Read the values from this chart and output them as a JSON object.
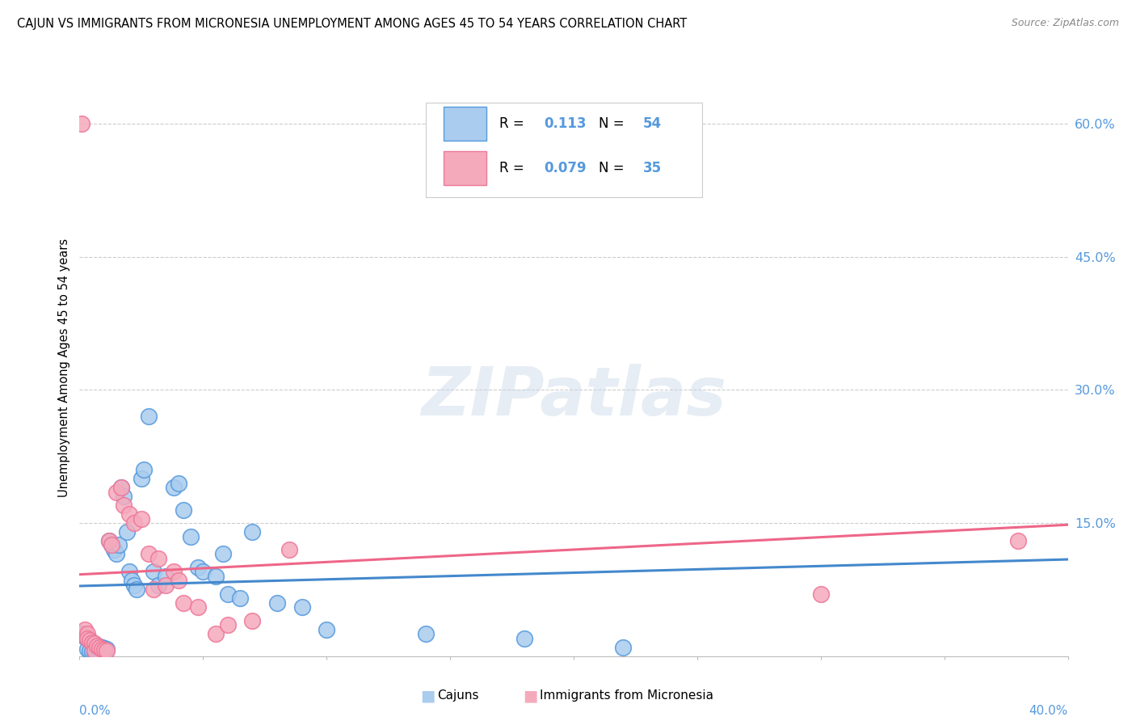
{
  "title": "CAJUN VS IMMIGRANTS FROM MICRONESIA UNEMPLOYMENT AMONG AGES 45 TO 54 YEARS CORRELATION CHART",
  "source": "Source: ZipAtlas.com",
  "ylabel": "Unemployment Among Ages 45 to 54 years",
  "y_ticks_labels": [
    "60.0%",
    "45.0%",
    "30.0%",
    "15.0%"
  ],
  "y_tick_vals": [
    0.6,
    0.45,
    0.3,
    0.15
  ],
  "x_range": [
    0.0,
    0.4
  ],
  "y_range": [
    0.0,
    0.65
  ],
  "watermark": "ZIPatlas",
  "cajun_R": "0.113",
  "cajun_N": "54",
  "micro_R": "0.079",
  "micro_N": "35",
  "cajun_color": "#aaccee",
  "micro_color": "#f5aabc",
  "cajun_edge_color": "#5599dd",
  "micro_edge_color": "#ee7799",
  "cajun_trend_color": "#4488cc",
  "micro_trend_color": "#ee6688",
  "cajun_scatter_x": [
    0.001,
    0.002,
    0.003,
    0.003,
    0.004,
    0.004,
    0.005,
    0.005,
    0.006,
    0.006,
    0.007,
    0.007,
    0.008,
    0.008,
    0.009,
    0.009,
    0.01,
    0.01,
    0.011,
    0.012,
    0.013,
    0.014,
    0.015,
    0.016,
    0.017,
    0.018,
    0.019,
    0.02,
    0.021,
    0.022,
    0.023,
    0.025,
    0.026,
    0.028,
    0.03,
    0.032,
    0.035,
    0.038,
    0.04,
    0.042,
    0.045,
    0.048,
    0.05,
    0.055,
    0.058,
    0.06,
    0.065,
    0.07,
    0.08,
    0.09,
    0.1,
    0.14,
    0.18,
    0.22
  ],
  "cajun_scatter_y": [
    0.025,
    0.022,
    0.02,
    0.008,
    0.018,
    0.006,
    0.015,
    0.005,
    0.013,
    0.004,
    0.012,
    0.003,
    0.011,
    0.003,
    0.01,
    0.002,
    0.009,
    0.002,
    0.008,
    0.13,
    0.125,
    0.12,
    0.115,
    0.125,
    0.19,
    0.18,
    0.14,
    0.095,
    0.085,
    0.08,
    0.075,
    0.2,
    0.21,
    0.27,
    0.095,
    0.08,
    0.09,
    0.19,
    0.195,
    0.165,
    0.135,
    0.1,
    0.095,
    0.09,
    0.115,
    0.07,
    0.065,
    0.14,
    0.06,
    0.055,
    0.03,
    0.025,
    0.02,
    0.01
  ],
  "micro_scatter_x": [
    0.001,
    0.002,
    0.003,
    0.003,
    0.004,
    0.005,
    0.006,
    0.006,
    0.007,
    0.008,
    0.009,
    0.01,
    0.011,
    0.012,
    0.013,
    0.015,
    0.017,
    0.018,
    0.02,
    0.022,
    0.025,
    0.028,
    0.03,
    0.032,
    0.035,
    0.038,
    0.04,
    0.042,
    0.048,
    0.055,
    0.06,
    0.07,
    0.085,
    0.3,
    0.38
  ],
  "micro_scatter_y": [
    0.6,
    0.03,
    0.025,
    0.02,
    0.018,
    0.015,
    0.014,
    0.006,
    0.012,
    0.01,
    0.008,
    0.007,
    0.006,
    0.13,
    0.125,
    0.185,
    0.19,
    0.17,
    0.16,
    0.15,
    0.155,
    0.115,
    0.075,
    0.11,
    0.08,
    0.095,
    0.085,
    0.06,
    0.055,
    0.025,
    0.035,
    0.04,
    0.12,
    0.07,
    0.13
  ],
  "cajun_trend": [
    0.079,
    0.109
  ],
  "micro_trend": [
    0.092,
    0.148
  ]
}
